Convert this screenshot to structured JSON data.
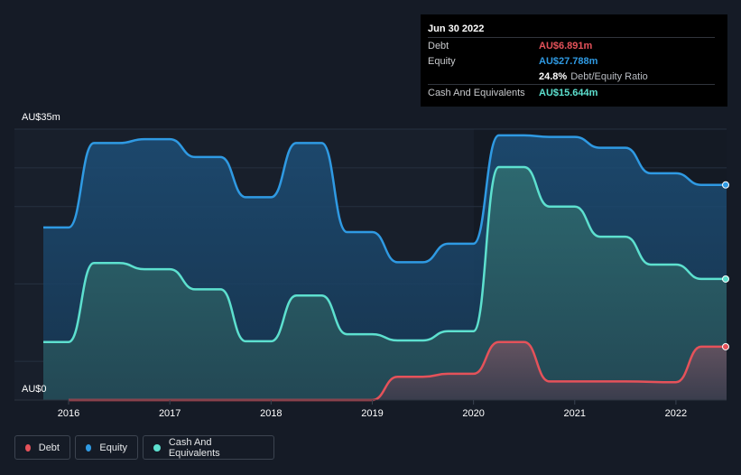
{
  "tooltip": {
    "date": "Jun 30 2022",
    "rows": [
      {
        "label": "Debt",
        "value": "AU$6.891m",
        "color": "#e5525a"
      },
      {
        "label": "Equity",
        "value": "AU$27.788m",
        "color": "#2f9ae3"
      },
      {
        "label": "",
        "value": "24.8%",
        "extra": "Debt/Equity Ratio",
        "color": "#ffffff"
      },
      {
        "label": "Cash And Equivalents",
        "value": "AU$15.644m",
        "color": "#5de0cf"
      }
    ]
  },
  "legend": [
    {
      "label": "Debt",
      "color": "#e5525a"
    },
    {
      "label": "Equity",
      "color": "#2f9ae3"
    },
    {
      "label": "Cash And Equivalents",
      "color": "#5de0cf"
    }
  ],
  "chart_data": {
    "type": "area",
    "title": "",
    "xlabel": "",
    "ylabel": "",
    "y_max_label": "AU$35m",
    "y_min_label": "AU$0",
    "ylim": [
      0,
      35
    ],
    "xlim": [
      2015.75,
      2022.5
    ],
    "x_ticks": [
      "2016",
      "2017",
      "2018",
      "2019",
      "2020",
      "2021",
      "2022"
    ],
    "series": [
      {
        "name": "Equity",
        "color": "#2f9ae3",
        "points": [
          [
            2015.75,
            22.3
          ],
          [
            2016.0,
            22.3
          ],
          [
            2016.25,
            33.2
          ],
          [
            2016.5,
            33.2
          ],
          [
            2016.75,
            33.7
          ],
          [
            2017.0,
            33.7
          ],
          [
            2017.25,
            31.4
          ],
          [
            2017.5,
            31.4
          ],
          [
            2017.75,
            26.2
          ],
          [
            2018.0,
            26.2
          ],
          [
            2018.25,
            33.2
          ],
          [
            2018.5,
            33.2
          ],
          [
            2018.75,
            21.7
          ],
          [
            2019.0,
            21.7
          ],
          [
            2019.25,
            17.8
          ],
          [
            2019.5,
            17.8
          ],
          [
            2019.75,
            20.2
          ],
          [
            2020.0,
            20.2
          ],
          [
            2020.25,
            34.2
          ],
          [
            2020.5,
            34.2
          ],
          [
            2020.75,
            34.0
          ],
          [
            2021.0,
            34.0
          ],
          [
            2021.25,
            32.6
          ],
          [
            2021.5,
            32.6
          ],
          [
            2021.75,
            29.3
          ],
          [
            2022.0,
            29.3
          ],
          [
            2022.25,
            27.79
          ],
          [
            2022.5,
            27.79
          ]
        ]
      },
      {
        "name": "Cash And Equivalents",
        "color": "#5de0cf",
        "points": [
          [
            2015.75,
            7.5
          ],
          [
            2016.0,
            7.5
          ],
          [
            2016.25,
            17.7
          ],
          [
            2016.5,
            17.7
          ],
          [
            2016.75,
            16.9
          ],
          [
            2017.0,
            16.9
          ],
          [
            2017.25,
            14.3
          ],
          [
            2017.5,
            14.3
          ],
          [
            2017.75,
            7.6
          ],
          [
            2018.0,
            7.6
          ],
          [
            2018.25,
            13.5
          ],
          [
            2018.5,
            13.5
          ],
          [
            2018.75,
            8.5
          ],
          [
            2019.0,
            8.5
          ],
          [
            2019.25,
            7.7
          ],
          [
            2019.5,
            7.7
          ],
          [
            2019.75,
            8.9
          ],
          [
            2020.0,
            8.9
          ],
          [
            2020.25,
            30.1
          ],
          [
            2020.5,
            30.1
          ],
          [
            2020.75,
            25.0
          ],
          [
            2021.0,
            25.0
          ],
          [
            2021.25,
            21.1
          ],
          [
            2021.5,
            21.1
          ],
          [
            2021.75,
            17.5
          ],
          [
            2022.0,
            17.5
          ],
          [
            2022.25,
            15.64
          ],
          [
            2022.5,
            15.64
          ]
        ]
      },
      {
        "name": "Debt",
        "color": "#e5525a",
        "points": [
          [
            2016.0,
            0.0
          ],
          [
            2019.0,
            0.0
          ],
          [
            2019.25,
            3.0
          ],
          [
            2019.5,
            3.0
          ],
          [
            2019.75,
            3.4
          ],
          [
            2020.0,
            3.4
          ],
          [
            2020.25,
            7.5
          ],
          [
            2020.5,
            7.5
          ],
          [
            2020.75,
            2.4
          ],
          [
            2021.0,
            2.4
          ],
          [
            2021.5,
            2.4
          ],
          [
            2022.0,
            2.3
          ],
          [
            2022.25,
            6.89
          ],
          [
            2022.5,
            6.89
          ]
        ]
      }
    ]
  }
}
